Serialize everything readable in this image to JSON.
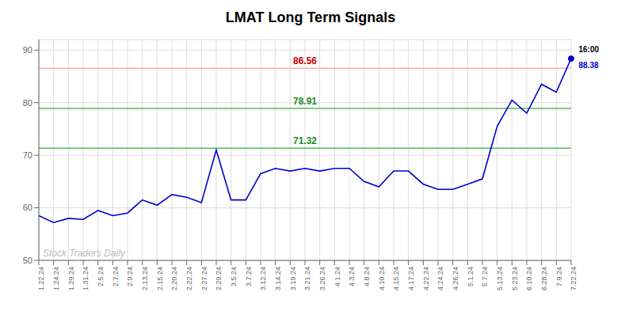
{
  "chart_data": {
    "type": "line",
    "title": "LMAT Long Term Signals",
    "categories": [
      "1.22.24",
      "1.24.24",
      "1.29.24",
      "1.31.24",
      "2.5.24",
      "2.7.24",
      "2.9.24",
      "2.13.24",
      "2.15.24",
      "2.20.24",
      "2.22.24",
      "2.27.24",
      "2.29.24",
      "3.5.24",
      "3.7.24",
      "3.12.24",
      "3.14.24",
      "3.19.24",
      "3.21.24",
      "3.26.24",
      "4.1.24",
      "4.3.24",
      "4.8.24",
      "4.10.24",
      "4.15.24",
      "4.17.24",
      "4.22.24",
      "4.24.24",
      "4.26.24",
      "5.1.24",
      "5.7.24",
      "5.13.24",
      "5.23.24",
      "6.10.24",
      "6.28.24",
      "7.9.24",
      "7.22.24"
    ],
    "values": [
      58.5,
      57.2,
      58.0,
      57.8,
      59.5,
      58.5,
      59.0,
      61.5,
      60.5,
      62.5,
      62.0,
      61.0,
      71.0,
      61.5,
      61.5,
      66.5,
      67.5,
      67.0,
      67.5,
      67.0,
      67.5,
      67.5,
      65.0,
      64.0,
      67.0,
      67.0,
      64.5,
      63.5,
      63.5,
      64.5,
      65.5,
      75.5,
      80.5,
      78.0,
      83.5,
      82.0,
      88.38
    ],
    "color": "#0000cc",
    "ylim": [
      50,
      92
    ],
    "yticks": [
      50,
      60,
      70,
      80,
      90
    ],
    "grid": true,
    "hlines": [
      {
        "value": 86.56,
        "label": "86.56",
        "color": "#ffaaaa",
        "label_color": "#cc0000"
      },
      {
        "value": 78.91,
        "label": "78.91",
        "color": "#55bb55",
        "label_color": "#228B22"
      },
      {
        "value": 71.32,
        "label": "71.32",
        "color": "#55bb55",
        "label_color": "#228B22"
      }
    ],
    "annotations": [
      {
        "text": "16:00",
        "color": "#000000"
      },
      {
        "text": "88.38",
        "color": "#0000cc"
      }
    ],
    "watermark": {
      "text": "Stock Traders Daily",
      "color": "#bbbbbb"
    }
  }
}
